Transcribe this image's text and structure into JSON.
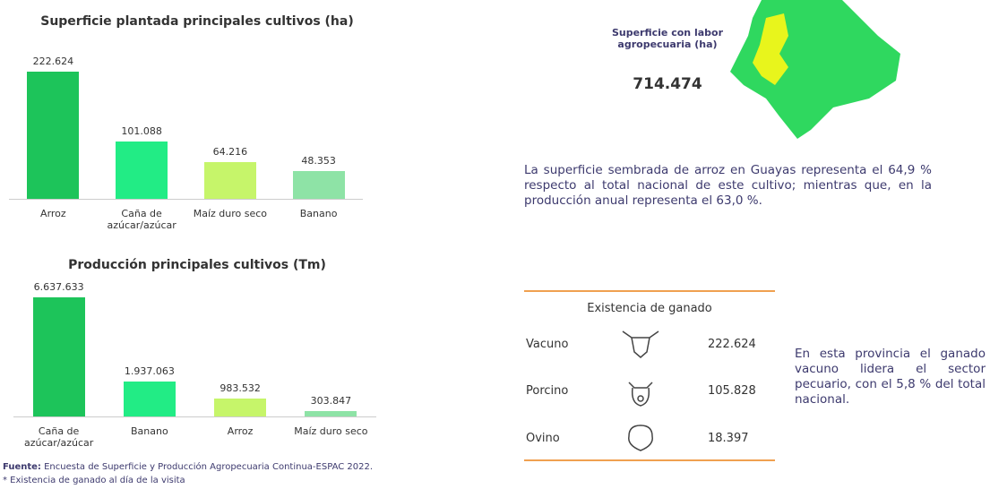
{
  "chart_data": [
    {
      "type": "bar",
      "title": "Superficie plantada principales cultivos (ha)",
      "categories": [
        "Arroz",
        "Caña de azúcar/azúcar",
        "Maíz duro seco",
        "Banano"
      ],
      "values": [
        222624,
        101088,
        64216,
        48353
      ],
      "value_labels": [
        "222.624",
        "101.088",
        "64.216",
        "48.353"
      ],
      "colors": [
        "#1dc45a",
        "#22ec85",
        "#c6f56a",
        "#8ee3a6"
      ]
    },
    {
      "type": "bar",
      "title": "Producción principales cultivos (Tm)",
      "categories": [
        "Caña de azúcar/azúcar",
        "Banano",
        "Arroz",
        "Maíz duro seco"
      ],
      "values": [
        6637633,
        1937063,
        983532,
        303847
      ],
      "value_labels": [
        "6.637.633",
        "1.937.063",
        "983.532",
        "303.847"
      ],
      "colors": [
        "#1dc45a",
        "#22ec85",
        "#c6f56a",
        "#8ee3a6"
      ]
    }
  ],
  "map": {
    "label": "Superficie con labor agropecuaria (ha)",
    "value": "714.474"
  },
  "paragraph": "La superficie sembrada de arroz en Guayas representa el 64,9 % respecto al total nacional de este cultivo; mientras que, en la producción anual representa el 63,0 %.",
  "table": {
    "title": "Existencia de ganado",
    "rows": [
      [
        "Vacuno",
        "222.624"
      ],
      [
        "Porcino",
        "105.828"
      ],
      [
        "Ovino",
        "18.397"
      ]
    ]
  },
  "note": "En esta provincia el ganado vacuno lidera el sector pecuario, con el 5,8 % del total nacional.",
  "source": {
    "label": "Fuente:",
    "text": "Encuesta de Superficie y Producción Agropecuaria Continua-ESPAC 2022."
  },
  "footnote": "* Existencia  de ganado al día de la visita"
}
